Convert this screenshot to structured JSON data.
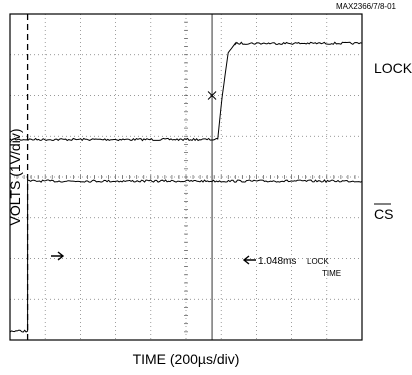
{
  "chart_data": {
    "type": "line",
    "figure_id": "MAX2366/7/8-01",
    "xlabel": "TIME (200µs/div)",
    "ylabel": "VOLTS (1V/div)",
    "x_divisions": 10,
    "y_divisions": 8,
    "x_per_div_us": 200,
    "y_per_div_v": 1,
    "grid": true,
    "series": [
      {
        "name": "LOCK",
        "x_div": [
          0,
          5.9,
          6.03,
          6.2,
          6.4,
          10
        ],
        "y_div": [
          4.92,
          4.92,
          6.0,
          7.05,
          7.28,
          7.28
        ]
      },
      {
        "name": "CS",
        "overbar": true,
        "x_div": [
          0,
          0.5,
          0.5,
          10
        ],
        "y_div": [
          0.22,
          0.22,
          3.9,
          3.9
        ]
      }
    ],
    "annotations": [
      {
        "text": "1.048ms",
        "note_line1": "LOCK",
        "note_line2": "TIME"
      }
    ],
    "cursor_x_div": [
      0.5,
      5.74
    ]
  }
}
